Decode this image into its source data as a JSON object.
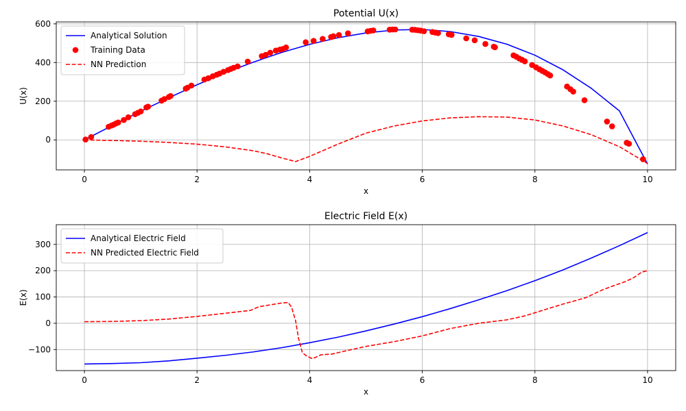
{
  "chart_data": [
    {
      "type": "line",
      "title": "Potential U(x)",
      "xlabel": "x",
      "ylabel": "U(x)",
      "xlim": [
        -0.5,
        10.5
      ],
      "ylim": [
        -155,
        610
      ],
      "xticks": [
        0,
        2,
        4,
        6,
        8,
        10
      ],
      "yticks": [
        0,
        200,
        400,
        600
      ],
      "grid": true,
      "legend_position": "top-left",
      "series": [
        {
          "name": "Analytical Solution",
          "kind": "line",
          "color": "#0000ff",
          "style": "solid",
          "x": [
            0,
            0.5,
            1,
            1.5,
            2,
            2.5,
            3,
            3.5,
            4,
            4.5,
            5,
            5.5,
            6,
            6.5,
            7,
            7.5,
            8,
            8.5,
            9,
            9.5,
            10
          ],
          "y": [
            0,
            75,
            148,
            218,
            285,
            347,
            402,
            452,
            494,
            528,
            553,
            568,
            571,
            560,
            535,
            495,
            438,
            362,
            267,
            150,
            -125
          ]
        },
        {
          "name": "Training Data",
          "kind": "scatter",
          "color": "#ff0000",
          "x": [
            0.02,
            0.12,
            0.43,
            0.48,
            0.52,
            0.56,
            0.6,
            0.7,
            0.78,
            0.9,
            0.95,
            1.0,
            1.1,
            1.13,
            1.37,
            1.42,
            1.5,
            1.53,
            1.8,
            1.83,
            1.9,
            2.13,
            2.2,
            2.28,
            2.35,
            2.4,
            2.47,
            2.55,
            2.6,
            2.65,
            2.72,
            2.9,
            3.15,
            3.22,
            3.3,
            3.4,
            3.47,
            3.52,
            3.58,
            3.93,
            4.07,
            4.23,
            4.38,
            4.42,
            4.52,
            4.68,
            5.03,
            5.08,
            5.13,
            5.42,
            5.47,
            5.52,
            5.82,
            5.87,
            5.92,
            5.97,
            6.03,
            6.18,
            6.23,
            6.28,
            6.47,
            6.52,
            6.78,
            6.93,
            7.12,
            7.27,
            7.29,
            7.62,
            7.67,
            7.72,
            7.77,
            7.82,
            7.95,
            8.02,
            8.08,
            8.13,
            8.18,
            8.23,
            8.27,
            8.57,
            8.63,
            8.68,
            8.88,
            9.28,
            9.37,
            9.63,
            9.67,
            9.92
          ],
          "y": [
            2,
            15,
            68,
            74,
            79,
            85,
            90,
            103,
            117,
            133,
            140,
            147,
            168,
            172,
            203,
            211,
            222,
            227,
            265,
            270,
            281,
            312,
            319,
            329,
            337,
            343,
            352,
            361,
            367,
            373,
            380,
            405,
            433,
            440,
            451,
            462,
            467,
            470,
            478,
            505,
            512,
            522,
            532,
            536,
            542,
            551,
            561,
            564,
            566,
            570,
            571,
            571,
            570,
            569,
            567,
            565,
            562,
            558,
            555,
            552,
            546,
            543,
            525,
            515,
            496,
            482,
            479,
            437,
            430,
            421,
            414,
            406,
            387,
            375,
            365,
            357,
            349,
            340,
            333,
            276,
            262,
            250,
            205,
            95,
            70,
            -15,
            -20,
            -100
          ]
        },
        {
          "name": "NN Prediction",
          "kind": "line",
          "color": "#ff0000",
          "style": "dashed",
          "x": [
            0,
            0.5,
            1,
            1.5,
            2,
            2.5,
            3,
            3.25,
            3.5,
            3.75,
            4,
            4.5,
            5,
            5.5,
            6,
            6.5,
            7,
            7.5,
            8,
            8.5,
            9,
            9.5,
            10
          ],
          "y": [
            0,
            -3,
            -7,
            -13,
            -22,
            -36,
            -56,
            -72,
            -93,
            -112,
            -85,
            -22,
            35,
            72,
            98,
            114,
            120,
            118,
            103,
            72,
            27,
            -35,
            -122
          ]
        }
      ]
    },
    {
      "type": "line",
      "title": "Electric Field E(x)",
      "xlabel": "x",
      "ylabel": "E(x)",
      "xlim": [
        -0.5,
        10.5
      ],
      "ylim": [
        -180,
        375
      ],
      "xticks": [
        0,
        2,
        4,
        6,
        8,
        10
      ],
      "yticks": [
        -100,
        0,
        100,
        200,
        300
      ],
      "grid": true,
      "legend_position": "top-left",
      "series": [
        {
          "name": "Analytical Electric Field",
          "kind": "line",
          "color": "#0000ff",
          "style": "solid",
          "x": [
            0,
            0.5,
            1,
            1.5,
            2,
            2.5,
            3,
            3.5,
            4,
            4.5,
            5,
            5.5,
            6,
            6.5,
            7,
            7.5,
            8,
            8.5,
            9,
            9.5,
            10
          ],
          "y": [
            -155,
            -153,
            -150,
            -143,
            -133,
            -122,
            -109,
            -93,
            -74,
            -53,
            -29,
            -3,
            25,
            56,
            89,
            124,
            162,
            203,
            248,
            295,
            345
          ]
        },
        {
          "name": "NN Predicted Electric Field",
          "kind": "line",
          "color": "#ff0000",
          "style": "dashed",
          "x": [
            0,
            0.5,
            1,
            1.5,
            2,
            2.5,
            2.95,
            3.1,
            3.3,
            3.5,
            3.62,
            3.68,
            3.75,
            3.8,
            3.87,
            3.95,
            4.05,
            4.2,
            4.4,
            4.6,
            5,
            5.5,
            6,
            6.5,
            7,
            7.5,
            7.8,
            8,
            8.3,
            8.5,
            8.9,
            9.2,
            9.4,
            9.6,
            9.75,
            9.9,
            10
          ],
          "y": [
            6,
            7,
            10,
            16,
            26,
            38,
            49,
            63,
            70,
            77,
            79,
            60,
            10,
            -55,
            -112,
            -125,
            -135,
            -120,
            -117,
            -107,
            -88,
            -70,
            -48,
            -20,
            0,
            13,
            27,
            40,
            60,
            73,
            97,
            127,
            143,
            158,
            173,
            195,
            200
          ]
        }
      ]
    }
  ]
}
